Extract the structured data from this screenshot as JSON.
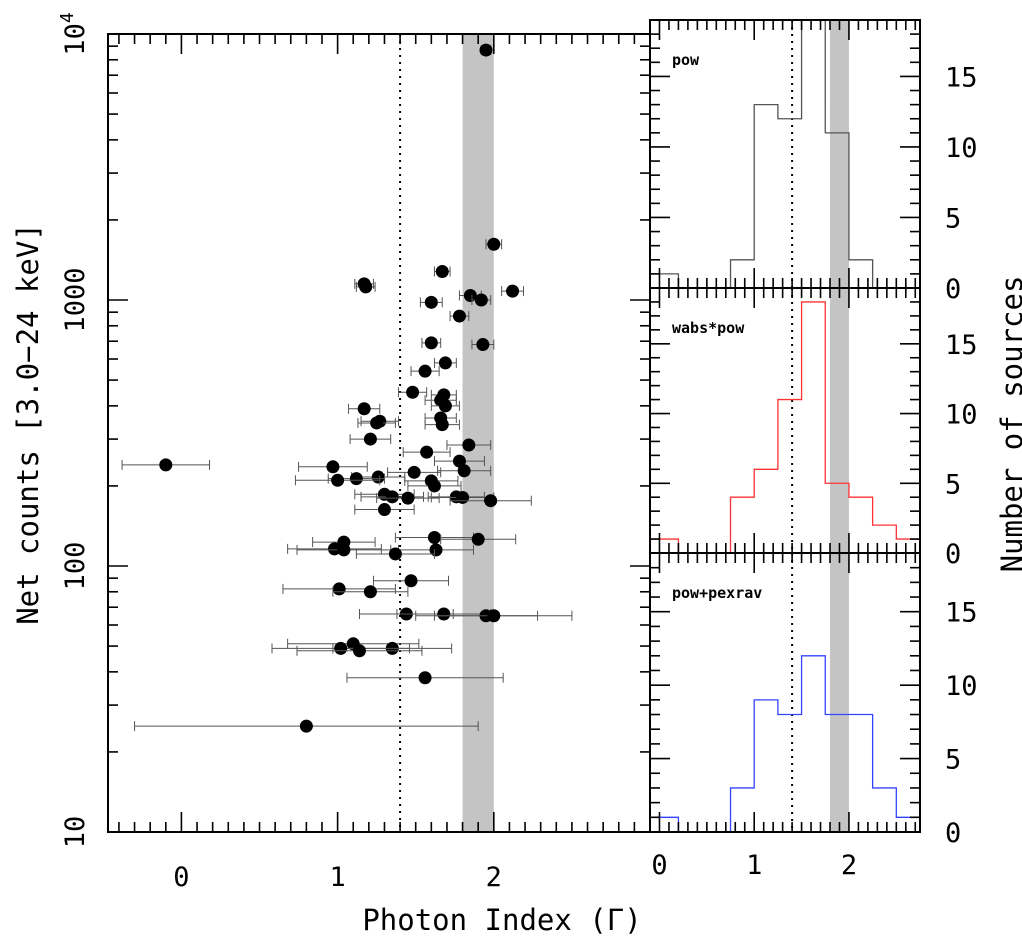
{
  "chart_data": [
    {
      "type": "scatter",
      "name": "net-counts-vs-photon-index",
      "xlabel": "Photon Index (Γ)",
      "ylabel": "Net counts [3.0−24 keV]",
      "xlim": [
        -0.47,
        3.0
      ],
      "ylim": [
        10,
        10000
      ],
      "yscale": "log",
      "xticks": [
        {
          "v": 0,
          "label": "0"
        },
        {
          "v": 1,
          "label": "1"
        },
        {
          "v": 2,
          "label": "2"
        }
      ],
      "yticks": [
        {
          "v": 10,
          "label": "10"
        },
        {
          "v": 100,
          "label": "100"
        },
        {
          "v": 1000,
          "label": "1000"
        },
        {
          "v": 10000,
          "label": "10",
          "sup": "4"
        }
      ],
      "reference_line_x": 1.4,
      "shaded_band_x": [
        1.8,
        2.0
      ],
      "points": [
        {
          "x": 1.95,
          "y": 8700,
          "xerr": 0.03
        },
        {
          "x": 2.0,
          "y": 1620,
          "xerr": 0.05
        },
        {
          "x": 1.67,
          "y": 1280,
          "xerr": 0.05
        },
        {
          "x": 1.17,
          "y": 1150,
          "xerr": 0.06
        },
        {
          "x": 1.18,
          "y": 1120,
          "xerr": 0.06
        },
        {
          "x": 2.12,
          "y": 1080,
          "xerr": 0.07
        },
        {
          "x": 1.85,
          "y": 1040,
          "xerr": 0.07
        },
        {
          "x": 1.92,
          "y": 1000,
          "xerr": 0.06
        },
        {
          "x": 1.6,
          "y": 980,
          "xerr": 0.07
        },
        {
          "x": 1.78,
          "y": 870,
          "xerr": 0.06
        },
        {
          "x": 1.6,
          "y": 690,
          "xerr": 0.06
        },
        {
          "x": 1.93,
          "y": 680,
          "xerr": 0.07
        },
        {
          "x": 1.69,
          "y": 580,
          "xerr": 0.07
        },
        {
          "x": 1.56,
          "y": 540,
          "xerr": 0.09
        },
        {
          "x": 1.48,
          "y": 450,
          "xerr": 0.09
        },
        {
          "x": 1.68,
          "y": 440,
          "xerr": 0.08
        },
        {
          "x": 1.66,
          "y": 420,
          "xerr": 0.1
        },
        {
          "x": 1.69,
          "y": 400,
          "xerr": 0.09
        },
        {
          "x": 1.17,
          "y": 390,
          "xerr": 0.1
        },
        {
          "x": 1.66,
          "y": 360,
          "xerr": 0.1
        },
        {
          "x": 1.27,
          "y": 350,
          "xerr": 0.12
        },
        {
          "x": 1.25,
          "y": 345,
          "xerr": 0.12
        },
        {
          "x": 1.67,
          "y": 340,
          "xerr": 0.11
        },
        {
          "x": 1.21,
          "y": 300,
          "xerr": 0.13
        },
        {
          "x": 1.84,
          "y": 285,
          "xerr": 0.14
        },
        {
          "x": 1.57,
          "y": 268,
          "xerr": 0.15
        },
        {
          "x": -0.1,
          "y": 240,
          "xerr": 0.28
        },
        {
          "x": 1.78,
          "y": 248,
          "xerr": 0.16
        },
        {
          "x": 0.97,
          "y": 236,
          "xerr": 0.22
        },
        {
          "x": 1.81,
          "y": 228,
          "xerr": 0.17
        },
        {
          "x": 1.49,
          "y": 225,
          "xerr": 0.17
        },
        {
          "x": 1.26,
          "y": 216,
          "xerr": 0.17
        },
        {
          "x": 1.12,
          "y": 213,
          "xerr": 0.18
        },
        {
          "x": 1.0,
          "y": 210,
          "xerr": 0.27
        },
        {
          "x": 1.6,
          "y": 209,
          "xerr": 0.17
        },
        {
          "x": 1.62,
          "y": 200,
          "xerr": 0.17
        },
        {
          "x": 1.3,
          "y": 186,
          "xerr": 0.19
        },
        {
          "x": 1.35,
          "y": 182,
          "xerr": 0.2
        },
        {
          "x": 1.76,
          "y": 182,
          "xerr": 0.18
        },
        {
          "x": 1.8,
          "y": 181,
          "xerr": 0.2
        },
        {
          "x": 1.45,
          "y": 180,
          "xerr": 0.2
        },
        {
          "x": 1.98,
          "y": 176,
          "xerr": 0.26
        },
        {
          "x": 1.3,
          "y": 163,
          "xerr": 0.19
        },
        {
          "x": 1.62,
          "y": 128,
          "xerr": 0.25
        },
        {
          "x": 1.9,
          "y": 126,
          "xerr": 0.24
        },
        {
          "x": 1.04,
          "y": 123,
          "xerr": 0.2
        },
        {
          "x": 0.98,
          "y": 116,
          "xerr": 0.3
        },
        {
          "x": 1.04,
          "y": 115,
          "xerr": 0.3
        },
        {
          "x": 1.63,
          "y": 115,
          "xerr": 0.24
        },
        {
          "x": 1.37,
          "y": 111,
          "xerr": 0.25
        },
        {
          "x": 1.47,
          "y": 88,
          "xerr": 0.24
        },
        {
          "x": 1.01,
          "y": 82,
          "xerr": 0.36
        },
        {
          "x": 1.21,
          "y": 80,
          "xerr": 0.24
        },
        {
          "x": 1.44,
          "y": 66,
          "xerr": 0.3
        },
        {
          "x": 1.68,
          "y": 66,
          "xerr": 0.3
        },
        {
          "x": 1.95,
          "y": 65,
          "xerr": 0.33
        },
        {
          "x": 2.0,
          "y": 65,
          "xerr": 0.5
        },
        {
          "x": 1.1,
          "y": 51,
          "xerr": 0.42
        },
        {
          "x": 1.35,
          "y": 49,
          "xerr": 0.38
        },
        {
          "x": 1.02,
          "y": 49,
          "xerr": 0.44
        },
        {
          "x": 1.14,
          "y": 48,
          "xerr": 0.4
        },
        {
          "x": 1.56,
          "y": 38,
          "xerr": 0.5
        },
        {
          "x": 0.8,
          "y": 25,
          "xerr": 1.1
        }
      ]
    },
    {
      "type": "bar",
      "name": "histograms-number-of-sources",
      "ylabel": "Number of sources",
      "xlim": [
        -0.1,
        2.75
      ],
      "ylim": [
        0,
        19
      ],
      "xticks": [
        {
          "v": 0,
          "label": "0"
        },
        {
          "v": 1,
          "label": "1"
        },
        {
          "v": 2,
          "label": "2"
        }
      ],
      "yticks": [
        {
          "v": 0,
          "label": "0"
        },
        {
          "v": 5,
          "label": "5"
        },
        {
          "v": 10,
          "label": "10"
        },
        {
          "v": 15,
          "label": "15"
        }
      ],
      "reference_line_x": 1.4,
      "shaded_band_x": [
        1.8,
        2.0
      ],
      "bin_edges": [
        -0.1,
        0.2,
        0.5,
        0.75,
        1.0,
        1.25,
        1.5,
        1.75,
        2.0,
        2.25,
        2.5,
        2.75
      ],
      "series": [
        {
          "name": "pow",
          "label": "pow",
          "color": "#555555",
          "counts": [
            1,
            0,
            0,
            2,
            13,
            12,
            19,
            11,
            2,
            0,
            0
          ]
        },
        {
          "name": "wabs*pow",
          "label": "wabs*pow",
          "color": "#ff3333",
          "counts": [
            1,
            0,
            0,
            4,
            6,
            11,
            18,
            5,
            4,
            2,
            1
          ]
        },
        {
          "name": "pow+pexrav",
          "label": "pow+pexrav",
          "color": "#3344ff",
          "counts": [
            1,
            0,
            0,
            3,
            9,
            8,
            12,
            8,
            8,
            3,
            1
          ]
        }
      ]
    }
  ]
}
